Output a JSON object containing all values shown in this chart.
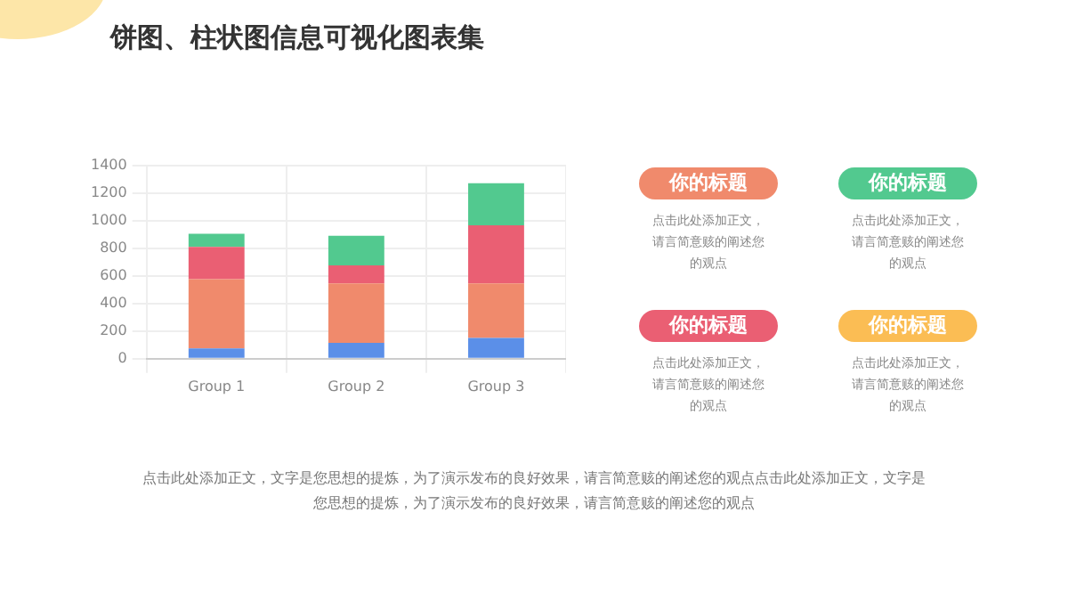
{
  "chart_data": [
    {
      "type": "bar",
      "title": "饼图、柱状图信息可视化图表集",
      "categories": [
        "Group 1",
        "Group 2",
        "Group 3"
      ],
      "stacked": true,
      "series": [
        {
          "color": "#5b8fe8",
          "values": [
            75,
            115,
            150
          ]
        },
        {
          "color": "#f08a6c",
          "values": [
            500,
            430,
            395
          ]
        },
        {
          "color": "#ea5f73",
          "values": [
            235,
            130,
            420
          ]
        },
        {
          "color": "#52c98f",
          "values": [
            95,
            215,
            305
          ]
        }
      ],
      "ylim": [
        0,
        1400
      ],
      "yticks": [
        0,
        200,
        400,
        600,
        800,
        1000,
        1200,
        1400
      ],
      "grid": true,
      "legend": false,
      "annotations": [
        "点击此处添加正文，文字是您思想的提炼，为了演示发布的良好效果，请言简意赅的阐述您的观点点击此处添加正文，文字是您思想的提炼，为了演示发布的良好效果，请言简意赅的阐述您的观点"
      ]
    },
    {
      "type": "other",
      "annotations": [
        "你的标题",
        "点击此处添加正文，请言简意赅的阐述您的观点",
        "你的标题",
        "点击此处添加正文，请言简意赅的阐述您的观点",
        "你的标题",
        "点击此处添加正文，请言简意赅的阐述您的观点",
        "你的标题",
        "点击此处添加正文，请言简意赅的阐述您的观点"
      ]
    }
  ]
}
